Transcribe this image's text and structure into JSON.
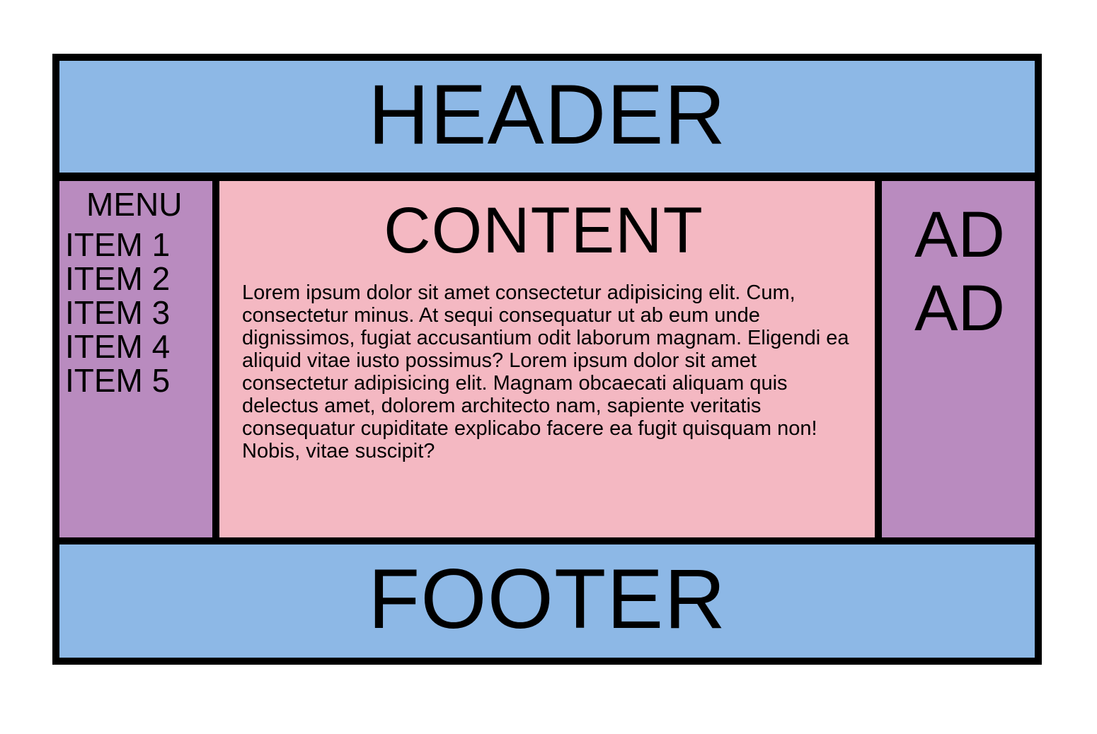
{
  "colors": {
    "header_footer": "#8db8e6",
    "sidebar": "#b98bbf",
    "content": "#f4b8c2",
    "border": "#000000"
  },
  "header": {
    "title": "HEADER"
  },
  "menu": {
    "title": "MENU",
    "items": [
      {
        "label": "ITEM 1"
      },
      {
        "label": "ITEM 2"
      },
      {
        "label": "ITEM 3"
      },
      {
        "label": "ITEM 4"
      },
      {
        "label": "ITEM 5"
      }
    ]
  },
  "content": {
    "title": "CONTENT",
    "text": "Lorem ipsum dolor sit amet consectetur adipisicing elit. Cum, consectetur minus. At sequi consequatur ut ab eum unde dignissimos, fugiat accusantium odit laborum magnam. Eligendi ea aliquid vitae iusto possimus? Lorem ipsum dolor sit amet consectetur adipisicing elit. Magnam obcaecati aliquam quis delectus amet, dolorem architecto nam, sapiente veritatis consequatur cupiditate explicabo facere ea fugit quisquam non! Nobis, vitae suscipit?"
  },
  "ad": {
    "lines": [
      "AD",
      "AD"
    ]
  },
  "footer": {
    "title": "FOOTER"
  }
}
